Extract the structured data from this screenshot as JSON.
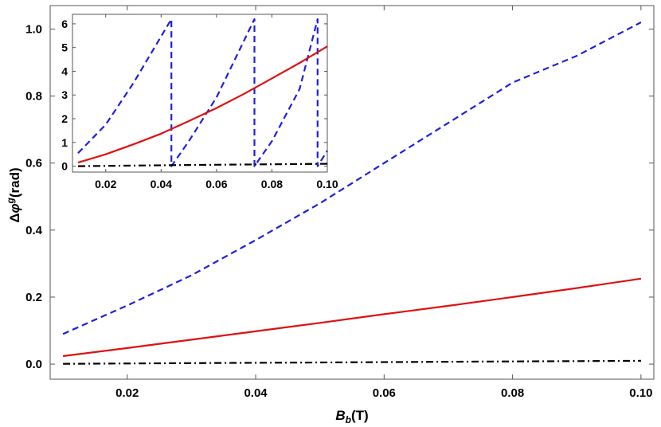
{
  "chart_data": [
    {
      "type": "line",
      "xlabel": "B_b(T)",
      "ylabel": "Δφ^g(rad)",
      "xlim": [
        0.008,
        0.102
      ],
      "ylim": [
        -0.045,
        1.07
      ],
      "x_ticks": [
        0.02,
        0.04,
        0.06,
        0.08,
        0.1
      ],
      "x_tick_labels": [
        "0.02",
        "0.04",
        "0.06",
        "0.08",
        "0.10"
      ],
      "y_ticks": [
        0.0,
        0.2,
        0.4,
        0.6,
        0.8,
        1.0
      ],
      "y_tick_labels": [
        "0.0",
        "0.2",
        "0.4",
        "0.6",
        "0.8",
        "1.0"
      ],
      "grid": false,
      "series": [
        {
          "style": "dashed",
          "color": "#1f1fe0",
          "x": [
            0.01,
            0.02,
            0.03,
            0.04,
            0.05,
            0.06,
            0.07,
            0.08,
            0.09,
            0.1
          ],
          "y": [
            0.09,
            0.175,
            0.265,
            0.37,
            0.48,
            0.6,
            0.72,
            0.84,
            0.92,
            1.02
          ]
        },
        {
          "style": "solid",
          "color": "#e01010",
          "x": [
            0.01,
            0.02,
            0.03,
            0.04,
            0.05,
            0.06,
            0.07,
            0.08,
            0.09,
            0.1
          ],
          "y": [
            0.024,
            0.048,
            0.073,
            0.098,
            0.123,
            0.149,
            0.174,
            0.2,
            0.227,
            0.255
          ]
        },
        {
          "style": "dashdot",
          "color": "#000000",
          "x": [
            0.01,
            0.03,
            0.05,
            0.07,
            0.09,
            0.1
          ],
          "y": [
            0.001,
            0.003,
            0.005,
            0.007,
            0.009,
            0.01
          ]
        }
      ]
    },
    {
      "type": "line",
      "inset": true,
      "xlim": [
        0.008,
        0.1
      ],
      "ylim": [
        -0.25,
        6.4
      ],
      "x_ticks": [
        0.02,
        0.04,
        0.06,
        0.08,
        0.1
      ],
      "x_tick_labels": [
        "0.02",
        "0.04",
        "0.06",
        "0.08",
        "0.10"
      ],
      "y_ticks": [
        0,
        1,
        2,
        3,
        4,
        5,
        6
      ],
      "y_tick_labels": [
        "0",
        "1",
        "2",
        "3",
        "4",
        "5",
        "6"
      ],
      "series": [
        {
          "style": "dashed",
          "color": "#1f1fe0",
          "x": [
            0.01,
            0.02,
            0.03,
            0.0437,
            0.0437,
            0.05,
            0.06,
            0.0737,
            0.0737,
            0.08,
            0.09,
            0.0965,
            0.0965,
            0.1
          ],
          "y": [
            0.55,
            1.75,
            3.5,
            6.2,
            0.0,
            1.05,
            2.9,
            6.2,
            0.0,
            1.05,
            3.25,
            6.2,
            0.0,
            0.65
          ]
        },
        {
          "style": "solid",
          "color": "#e01010",
          "x": [
            0.01,
            0.02,
            0.03,
            0.04,
            0.05,
            0.06,
            0.07,
            0.08,
            0.09,
            0.1
          ],
          "y": [
            0.15,
            0.5,
            0.92,
            1.37,
            1.9,
            2.45,
            3.05,
            3.7,
            4.35,
            5.05
          ]
        },
        {
          "style": "dashdot",
          "color": "#000000",
          "x": [
            0.01,
            0.05,
            0.1
          ],
          "y": [
            0.0,
            0.05,
            0.1
          ]
        }
      ]
    }
  ]
}
